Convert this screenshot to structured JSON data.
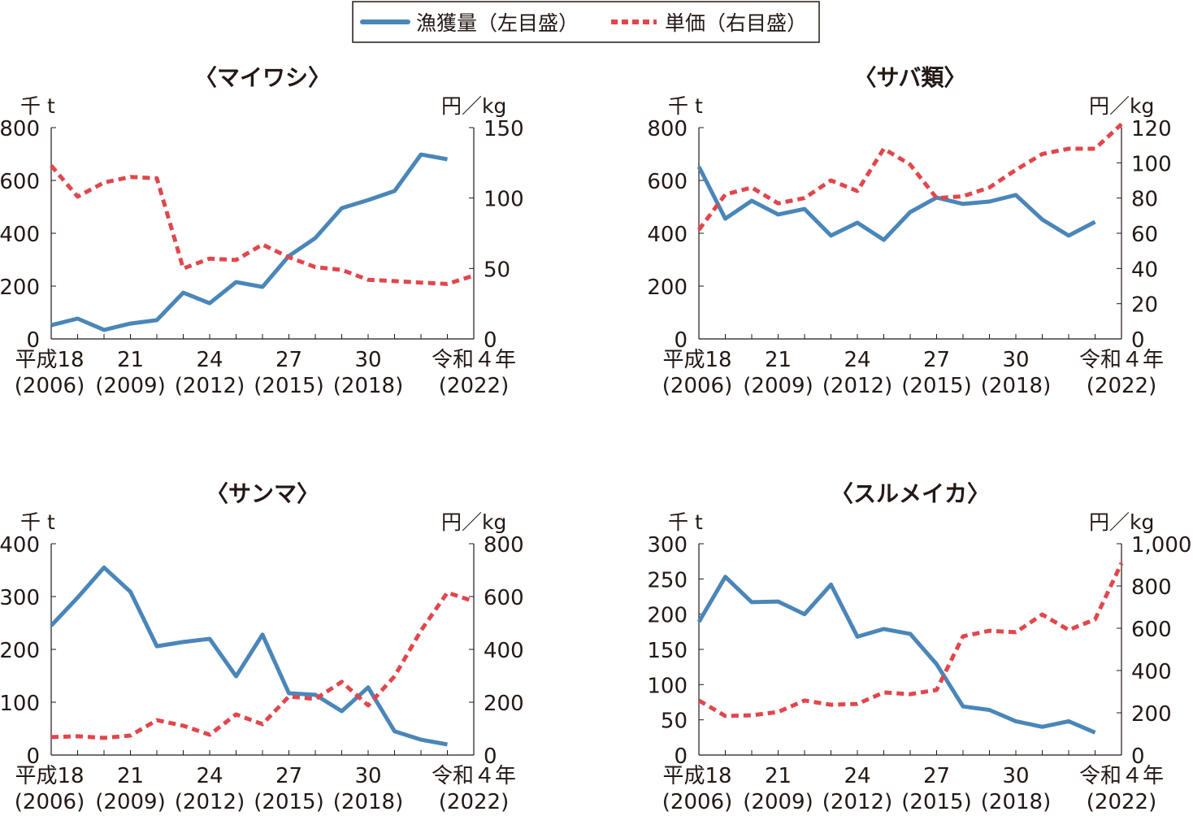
{
  "legend": {
    "catch_label": "漁獲量（左目盛）",
    "price_label": "単価（右目盛）"
  },
  "colors": {
    "catch": "#4a86b8",
    "price": "#e0474c"
  },
  "chart_data": [
    {
      "type": "line",
      "title": "〈マイワシ〉",
      "left_unit": "千 t",
      "right_unit": "円／kg",
      "left_ylim": [
        0,
        800
      ],
      "left_ticks": [
        "0",
        "200",
        "400",
        "600",
        "800"
      ],
      "right_ylim": [
        0,
        150
      ],
      "right_ticks": [
        "0",
        "50",
        "100",
        "150"
      ],
      "x_ticks": [
        {
          "year": 2006,
          "label": "平成18",
          "sub": "(2006)"
        },
        {
          "year": 2009,
          "label": "21",
          "sub": "(2009)"
        },
        {
          "year": 2012,
          "label": "24",
          "sub": "(2012)"
        },
        {
          "year": 2015,
          "label": "27",
          "sub": "(2015)"
        },
        {
          "year": 2018,
          "label": "30",
          "sub": "(2018)"
        },
        {
          "year": 2022,
          "label": "令和４年",
          "sub": "(2022)"
        }
      ],
      "xlim": [
        2006,
        2022
      ],
      "series": [
        {
          "name": "漁獲量（左目盛）",
          "axis": "left",
          "x_start": 2006,
          "values": [
            52,
            77,
            34,
            58,
            71,
            175,
            135,
            215,
            197,
            314,
            382,
            495,
            526,
            560,
            698,
            680
          ]
        },
        {
          "name": "単価（右目盛）",
          "axis": "right",
          "x_start": 2006,
          "values": [
            123,
            101,
            111,
            115,
            114,
            50,
            57,
            56,
            67,
            58,
            51,
            49,
            42,
            41,
            40,
            39,
            45
          ]
        }
      ]
    },
    {
      "type": "line",
      "title": "〈サバ類〉",
      "left_unit": "千 t",
      "right_unit": "円／kg",
      "left_ylim": [
        0,
        800
      ],
      "left_ticks": [
        "0",
        "200",
        "400",
        "600",
        "800"
      ],
      "right_ylim": [
        0,
        120
      ],
      "right_ticks": [
        "0",
        "20",
        "40",
        "60",
        "80",
        "100",
        "120"
      ],
      "x_ticks": [
        {
          "year": 2006,
          "label": "平成18",
          "sub": "(2006)"
        },
        {
          "year": 2009,
          "label": "21",
          "sub": "(2009)"
        },
        {
          "year": 2012,
          "label": "24",
          "sub": "(2012)"
        },
        {
          "year": 2015,
          "label": "27",
          "sub": "(2015)"
        },
        {
          "year": 2018,
          "label": "30",
          "sub": "(2018)"
        },
        {
          "year": 2022,
          "label": "令和４年",
          "sub": "(2022)"
        }
      ],
      "xlim": [
        2006,
        2022
      ],
      "series": [
        {
          "name": "漁獲量（左目盛）",
          "axis": "left",
          "x_start": 2006,
          "values": [
            652,
            455,
            523,
            471,
            492,
            391,
            440,
            375,
            480,
            535,
            511,
            520,
            545,
            452,
            391,
            443
          ]
        },
        {
          "name": "単価（右目盛）",
          "axis": "right",
          "x_start": 2006,
          "values": [
            62,
            82,
            86,
            77,
            80,
            90,
            84,
            108,
            99,
            80,
            81,
            86,
            96,
            105,
            108,
            108,
            122
          ]
        }
      ]
    },
    {
      "type": "line",
      "title": "〈サンマ〉",
      "left_unit": "千 t",
      "right_unit": "円／kg",
      "left_ylim": [
        0,
        400
      ],
      "left_ticks": [
        "0",
        "100",
        "200",
        "300",
        "400"
      ],
      "right_ylim": [
        0,
        800
      ],
      "right_ticks": [
        "0",
        "200",
        "400",
        "600",
        "800"
      ],
      "x_ticks": [
        {
          "year": 2006,
          "label": "平成18",
          "sub": "(2006)"
        },
        {
          "year": 2009,
          "label": "21",
          "sub": "(2009)"
        },
        {
          "year": 2012,
          "label": "24",
          "sub": "(2012)"
        },
        {
          "year": 2015,
          "label": "27",
          "sub": "(2015)"
        },
        {
          "year": 2018,
          "label": "30",
          "sub": "(2018)"
        },
        {
          "year": 2022,
          "label": "令和４年",
          "sub": "(2022)"
        }
      ],
      "xlim": [
        2006,
        2022
      ],
      "series": [
        {
          "name": "漁獲量（左目盛）",
          "axis": "left",
          "x_start": 2006,
          "values": [
            245,
            298,
            355,
            309,
            206,
            214,
            220,
            149,
            228,
            117,
            114,
            83,
            128,
            45,
            29,
            20
          ]
        },
        {
          "name": "単価（右目盛）",
          "axis": "right",
          "x_start": 2006,
          "values": [
            68,
            71,
            65,
            74,
            132,
            111,
            77,
            154,
            117,
            222,
            212,
            277,
            188,
            298,
            471,
            615,
            582
          ]
        }
      ]
    },
    {
      "type": "line",
      "title": "〈スルメイカ〉",
      "left_unit": "千 t",
      "right_unit": "円／kg",
      "left_ylim": [
        0,
        300
      ],
      "left_ticks": [
        "0",
        "50",
        "100",
        "150",
        "200",
        "250",
        "300"
      ],
      "right_ylim": [
        0,
        1000
      ],
      "right_ticks": [
        "0",
        "200",
        "400",
        "600",
        "800",
        "1,000"
      ],
      "x_ticks": [
        {
          "year": 2006,
          "label": "平成18",
          "sub": "(2006)"
        },
        {
          "year": 2009,
          "label": "21",
          "sub": "(2009)"
        },
        {
          "year": 2012,
          "label": "24",
          "sub": "(2012)"
        },
        {
          "year": 2015,
          "label": "27",
          "sub": "(2015)"
        },
        {
          "year": 2018,
          "label": "30",
          "sub": "(2018)"
        },
        {
          "year": 2022,
          "label": "令和４年",
          "sub": "(2022)"
        }
      ],
      "xlim": [
        2006,
        2022
      ],
      "series": [
        {
          "name": "漁獲量（左目盛）",
          "axis": "left",
          "x_start": 2006,
          "values": [
            189,
            253,
            217,
            218,
            200,
            242,
            168,
            179,
            172,
            129,
            69,
            64,
            48,
            40,
            48,
            32
          ]
        },
        {
          "name": "単価（右目盛）",
          "axis": "right",
          "x_start": 2006,
          "values": [
            258,
            185,
            188,
            204,
            258,
            238,
            242,
            296,
            288,
            308,
            562,
            588,
            581,
            665,
            592,
            642,
            908
          ]
        }
      ]
    }
  ]
}
